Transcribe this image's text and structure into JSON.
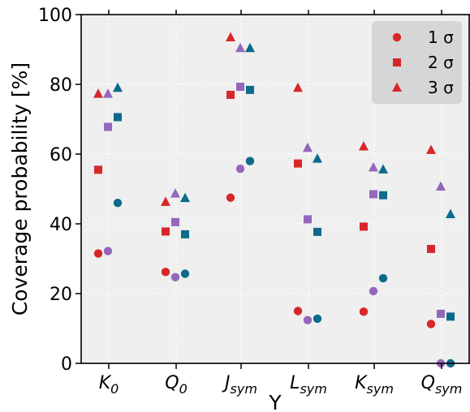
{
  "chart_data": {
    "type": "scatter",
    "xlabel": "Y",
    "ylabel": "Coverage probability  [%]",
    "ylim": [
      0,
      100
    ],
    "yticks": [
      0,
      20,
      40,
      60,
      80,
      100
    ],
    "grid": true,
    "legend_position": "top-right",
    "categories": [
      {
        "base": "K",
        "sub": "0"
      },
      {
        "base": "Q",
        "sub": "0"
      },
      {
        "base": "J",
        "sub": "sym"
      },
      {
        "base": "L",
        "sub": "sym"
      },
      {
        "base": "K",
        "sub": "sym"
      },
      {
        "base": "Q",
        "sub": "sym"
      }
    ],
    "legend": [
      {
        "label": "1 σ",
        "marker": "circle"
      },
      {
        "label": "2 σ",
        "marker": "square"
      },
      {
        "label": "3 σ",
        "marker": "triangle"
      }
    ],
    "groups": [
      {
        "color": "#d62728",
        "circle": [
          31.5,
          26.2,
          47.5,
          15.0,
          14.8,
          11.3
        ],
        "square": [
          55.5,
          37.8,
          77.0,
          57.3,
          39.2,
          32.8
        ],
        "triangle": [
          77.3,
          46.3,
          93.5,
          79.0,
          62.2,
          61.2
        ]
      },
      {
        "color": "#9467bd",
        "circle": [
          32.2,
          24.7,
          55.8,
          12.4,
          20.7,
          0.0
        ],
        "square": [
          67.8,
          40.5,
          79.3,
          41.3,
          48.5,
          14.2
        ],
        "triangle": [
          77.3,
          48.7,
          90.4,
          61.8,
          56.2,
          50.7
        ]
      },
      {
        "color": "#0b6b8a",
        "circle": [
          46.0,
          25.7,
          58.0,
          12.8,
          24.4,
          0.0
        ],
        "square": [
          70.6,
          37.0,
          78.4,
          37.7,
          48.2,
          13.4
        ],
        "triangle": [
          79.0,
          47.4,
          90.4,
          58.7,
          55.6,
          42.8
        ]
      }
    ]
  },
  "colors": {
    "plot_background": "#efefef",
    "grid": "#ffffff",
    "legend_background": "#d6d6d6"
  }
}
